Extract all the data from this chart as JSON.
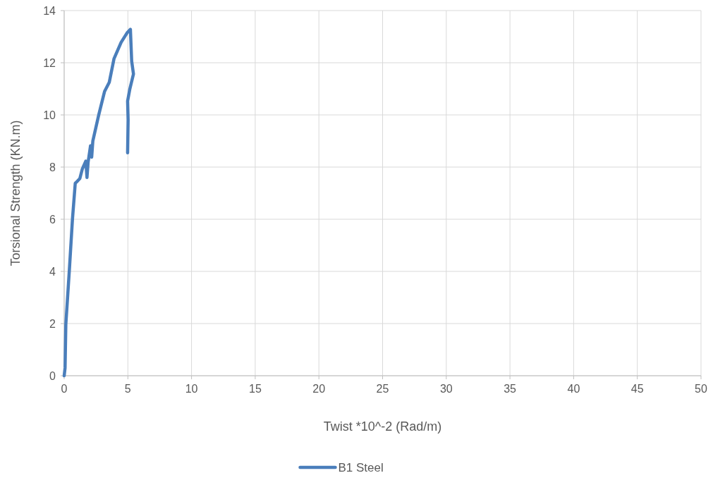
{
  "chart_data": {
    "type": "line",
    "xlabel": "Twist *10^-2 (Rad/m)",
    "ylabel": "Torsional Strength (KN.m)",
    "xlim": [
      0,
      50
    ],
    "xticks": [
      0,
      5,
      10,
      15,
      20,
      25,
      30,
      35,
      40,
      45,
      50
    ],
    "ylim": [
      0,
      14
    ],
    "yticks": [
      0,
      2,
      4,
      6,
      8,
      10,
      12,
      14
    ],
    "grid": true,
    "legend": "bottom",
    "marker": "none",
    "line_style": "solid",
    "series": [
      {
        "name": "B1 Steel",
        "color": "#4a7ebb",
        "x": [
          0,
          0.07,
          0.13,
          0.4,
          0.65,
          0.87,
          0.96,
          1.23,
          1.42,
          1.7,
          1.79,
          1.88,
          2.07,
          2.16,
          2.25,
          2.71,
          3.17,
          3.54,
          3.91,
          4.47,
          4.93,
          5.2,
          5.3,
          5.44,
          5.15,
          4.98,
          5.02,
          4.98
        ],
        "values": [
          0,
          0.3,
          1.97,
          4.0,
          6.0,
          7.38,
          7.42,
          7.56,
          7.92,
          8.23,
          7.6,
          8.19,
          8.82,
          8.38,
          9.0,
          9.99,
          10.9,
          11.25,
          12.15,
          12.78,
          13.14,
          13.28,
          12.06,
          11.57,
          10.98,
          10.53,
          9.81,
          8.55
        ]
      }
    ]
  }
}
